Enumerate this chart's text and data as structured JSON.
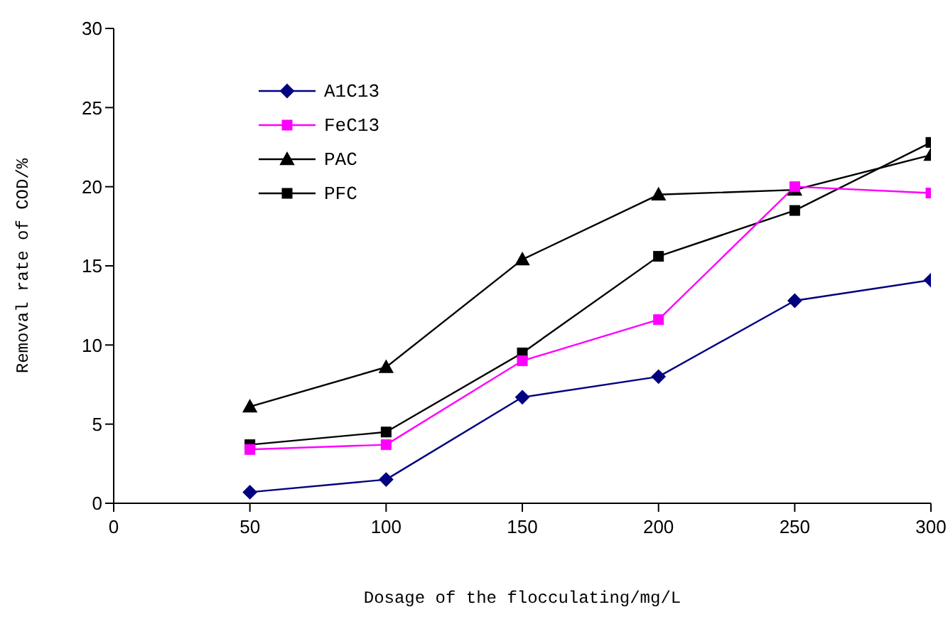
{
  "chart_data": {
    "type": "line",
    "xlabel": "Dosage of the flocculating/mg/L",
    "ylabel": "Removal rate of COD/%",
    "x": [
      50,
      100,
      150,
      200,
      250,
      300
    ],
    "xlim": [
      0,
      300
    ],
    "xticks": [
      0,
      50,
      100,
      150,
      200,
      250,
      300
    ],
    "ylim": [
      0,
      30
    ],
    "yticks": [
      0,
      5,
      10,
      15,
      20,
      25,
      30
    ],
    "grid": false,
    "legend": "top left",
    "line_style": "solid",
    "series": [
      {
        "name": "A1C13",
        "color": "#000080",
        "marker": "diamond",
        "values": [
          0.7,
          1.5,
          6.7,
          8.0,
          12.8,
          14.1
        ]
      },
      {
        "name": "FeC13",
        "color": "#ff00ff",
        "marker": "square",
        "values": [
          3.4,
          3.7,
          9.0,
          11.6,
          20.0,
          19.6
        ]
      },
      {
        "name": "PAC",
        "color": "#000000",
        "marker": "triangle",
        "values": [
          6.1,
          8.6,
          15.4,
          19.5,
          19.8,
          22.0
        ]
      },
      {
        "name": "PFC",
        "color": "#000000",
        "marker": "square",
        "values": [
          3.7,
          4.5,
          9.5,
          15.6,
          18.5,
          22.8
        ]
      }
    ]
  }
}
